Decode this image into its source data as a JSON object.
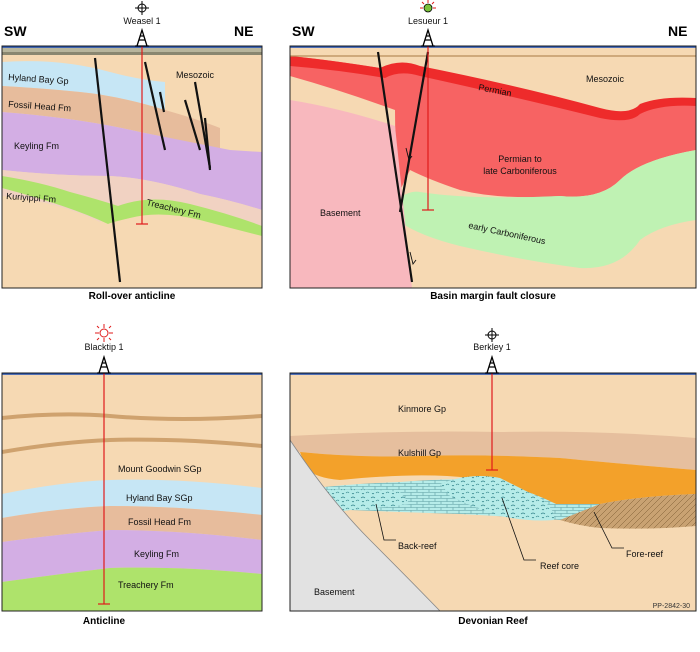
{
  "colors": {
    "mesozoic": "#f6d9b3",
    "hyland_bay": "#c6e6f5",
    "fossil_head": "#e7bc9c",
    "keyling": "#d3aee4",
    "kuriyippi": "#f1d2c2",
    "treachery": "#aee36b",
    "permian": "#ee2b2b",
    "permian_late": "#f76363",
    "early_carb": "#bff2b3",
    "basement_pink": "#f8b8be",
    "kinmore": "#f6d9b3",
    "kulshill": "#e6bf9e",
    "orange": "#f3a12a",
    "reef": "#b6ece9",
    "fore_reef": "#c9a272",
    "basement_grey": "#e2e2e2",
    "seafloor": "#1b4db5",
    "well_line": "#e01b1b"
  },
  "panels": {
    "rollover": {
      "well": "Weasel 1",
      "well_symbol": "dry-hole-symbol",
      "dir_left": "SW",
      "dir_right": "NE",
      "caption": "Roll-over anticline",
      "labels": {
        "mesozoic": "Mesozoic",
        "hyland": "Hyland Bay Gp",
        "fossil": "Fossil Head Fm",
        "keyling": "Keyling Fm",
        "kuriyippi": "Kuriyippi Fm",
        "treachery": "Treachery Fm"
      }
    },
    "basin": {
      "well": "Lesueur 1",
      "well_symbol": "gas-show-symbol",
      "dir_left": "SW",
      "dir_right": "NE",
      "caption": "Basin margin fault closure",
      "labels": {
        "mesozoic": "Mesozoic",
        "permian": "Permian",
        "permian_late_1": "Permian to",
        "permian_late_2": "late Carboniferous",
        "basement": "Basement",
        "early_carb": "early Carboniferous"
      }
    },
    "anticline": {
      "well": "Blacktip 1",
      "well_symbol": "gas-show-symbol",
      "caption": "Anticline",
      "labels": {
        "goodwin": "Mount Goodwin SGp",
        "hyland": "Hyland Bay SGp",
        "fossil": "Fossil Head Fm",
        "keyling": "Keyling Fm",
        "treachery": "Treachery Fm"
      }
    },
    "reef": {
      "well": "Berkley 1",
      "well_symbol": "dry-hole-symbol",
      "caption": "Devonian Reef",
      "labels": {
        "kinmore": "Kinmore Gp",
        "kulshill": "Kulshill Gp",
        "back_reef": "Back-reef",
        "reef_core": "Reef core",
        "fore_reef": "Fore-reef",
        "basement": "Basement"
      },
      "code": "PP-2842-30"
    }
  }
}
